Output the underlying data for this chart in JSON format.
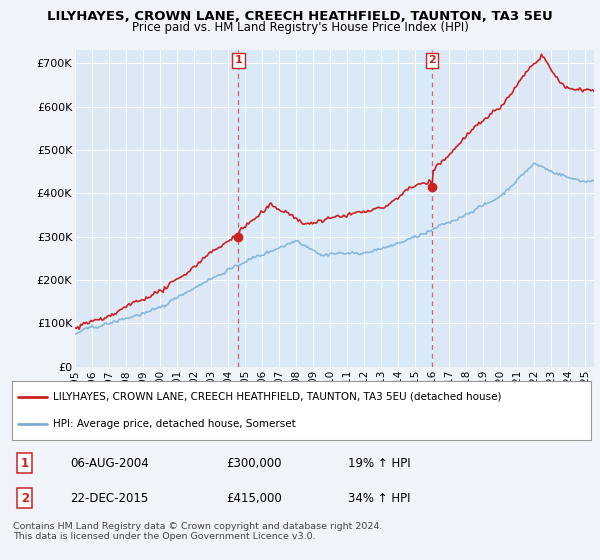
{
  "title": "LILYHAYES, CROWN LANE, CREECH HEATHFIELD, TAUNTON, TA3 5EU",
  "subtitle": "Price paid vs. HM Land Registry's House Price Index (HPI)",
  "ylabel_ticks": [
    "£0",
    "£100K",
    "£200K",
    "£300K",
    "£400K",
    "£500K",
    "£600K",
    "£700K"
  ],
  "ytick_values": [
    0,
    100000,
    200000,
    300000,
    400000,
    500000,
    600000,
    700000
  ],
  "ylim": [
    0,
    730000
  ],
  "xlim_start": 1995.0,
  "xlim_end": 2025.5,
  "hpi_color": "#7aaed4",
  "price_color": "#cc2222",
  "highlight_color": "#d8eaf8",
  "marker1_x": 2004.6,
  "marker1_y": 300000,
  "marker2_x": 2015.97,
  "marker2_y": 415000,
  "legend_label1": "LILYHAYES, CROWN LANE, CREECH HEATHFIELD, TAUNTON, TA3 5EU (detached house)",
  "legend_label2": "HPI: Average price, detached house, Somerset",
  "table_row1": [
    "1",
    "06-AUG-2004",
    "£300,000",
    "19% ↑ HPI"
  ],
  "table_row2": [
    "2",
    "22-DEC-2015",
    "£415,000",
    "34% ↑ HPI"
  ],
  "footer": "Contains HM Land Registry data © Crown copyright and database right 2024.\nThis data is licensed under the Open Government Licence v3.0.",
  "background_color": "#f0f4fa",
  "plot_bg_color": "#dce8f5"
}
